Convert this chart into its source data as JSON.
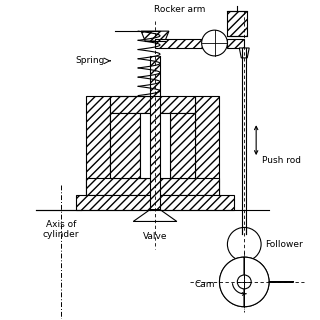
{
  "bg_color": "#ffffff",
  "line_color": "#000000",
  "labels": {
    "rocker_arm": "Rocker arm",
    "spring": "Spring",
    "valve": "Valve",
    "push_rod": "Push rod",
    "follower": "Follower",
    "cam": "Cam",
    "axis_of_cylinder": "Axis of\ncylinder"
  },
  "figsize": [
    3.2,
    3.2
  ],
  "dpi": 100
}
